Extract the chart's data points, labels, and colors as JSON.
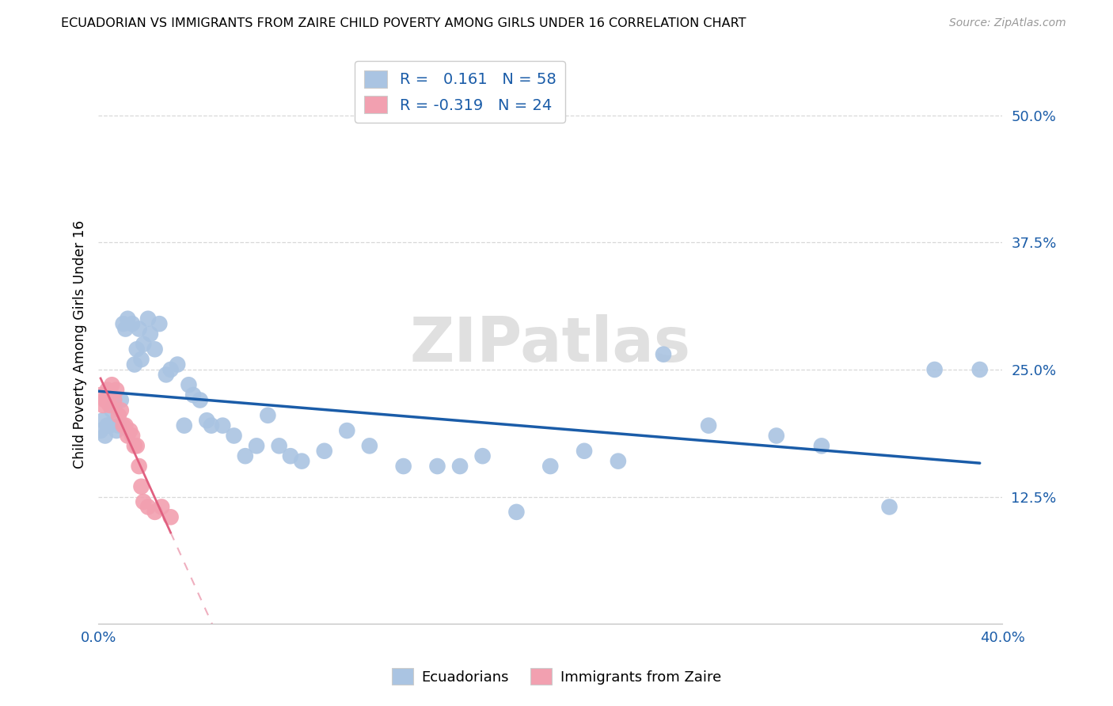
{
  "title": "ECUADORIAN VS IMMIGRANTS FROM ZAIRE CHILD POVERTY AMONG GIRLS UNDER 16 CORRELATION CHART",
  "source": "Source: ZipAtlas.com",
  "ylabel": "Child Poverty Among Girls Under 16",
  "xlim": [
    0.0,
    0.4
  ],
  "ylim": [
    0.0,
    0.55
  ],
  "yticks": [
    0.125,
    0.25,
    0.375,
    0.5
  ],
  "ytick_labels": [
    "12.5%",
    "25.0%",
    "37.5%",
    "50.0%"
  ],
  "xticks": [
    0.0,
    0.1,
    0.2,
    0.3,
    0.4
  ],
  "xtick_labels": [
    "0.0%",
    "",
    "",
    "",
    "40.0%"
  ],
  "blue_color": "#aac4e2",
  "pink_color": "#f2a0b0",
  "line_blue": "#1a5ca8",
  "line_pink": "#e06080",
  "R_blue": 0.161,
  "N_blue": 58,
  "R_pink": -0.319,
  "N_pink": 24,
  "ecuadorians_x": [
    0.001,
    0.002,
    0.003,
    0.004,
    0.005,
    0.006,
    0.007,
    0.008,
    0.009,
    0.01,
    0.011,
    0.012,
    0.013,
    0.015,
    0.016,
    0.017,
    0.018,
    0.019,
    0.02,
    0.022,
    0.023,
    0.025,
    0.027,
    0.03,
    0.032,
    0.035,
    0.038,
    0.04,
    0.042,
    0.045,
    0.048,
    0.05,
    0.055,
    0.06,
    0.065,
    0.07,
    0.075,
    0.08,
    0.085,
    0.09,
    0.1,
    0.11,
    0.12,
    0.135,
    0.15,
    0.16,
    0.17,
    0.185,
    0.2,
    0.215,
    0.23,
    0.25,
    0.27,
    0.3,
    0.32,
    0.35,
    0.37,
    0.39
  ],
  "ecuadorians_y": [
    0.19,
    0.2,
    0.185,
    0.195,
    0.195,
    0.21,
    0.215,
    0.19,
    0.195,
    0.22,
    0.295,
    0.29,
    0.3,
    0.295,
    0.255,
    0.27,
    0.29,
    0.26,
    0.275,
    0.3,
    0.285,
    0.27,
    0.295,
    0.245,
    0.25,
    0.255,
    0.195,
    0.235,
    0.225,
    0.22,
    0.2,
    0.195,
    0.195,
    0.185,
    0.165,
    0.175,
    0.205,
    0.175,
    0.165,
    0.16,
    0.17,
    0.19,
    0.175,
    0.155,
    0.155,
    0.155,
    0.165,
    0.11,
    0.155,
    0.17,
    0.16,
    0.265,
    0.195,
    0.185,
    0.175,
    0.115,
    0.25,
    0.25
  ],
  "zaire_x": [
    0.001,
    0.002,
    0.003,
    0.004,
    0.005,
    0.006,
    0.007,
    0.008,
    0.009,
    0.01,
    0.011,
    0.012,
    0.013,
    0.014,
    0.015,
    0.016,
    0.017,
    0.018,
    0.019,
    0.02,
    0.022,
    0.025,
    0.028,
    0.032
  ],
  "zaire_y": [
    0.225,
    0.215,
    0.22,
    0.23,
    0.215,
    0.235,
    0.22,
    0.23,
    0.205,
    0.21,
    0.195,
    0.195,
    0.185,
    0.19,
    0.185,
    0.175,
    0.175,
    0.155,
    0.135,
    0.12,
    0.115,
    0.11,
    0.115,
    0.105
  ],
  "watermark": "ZIPatlas",
  "background_color": "#ffffff",
  "grid_color": "#d8d8d8"
}
